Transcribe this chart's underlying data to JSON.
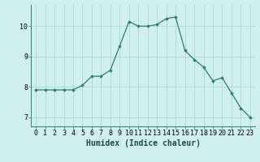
{
  "x": [
    0,
    1,
    2,
    3,
    4,
    5,
    6,
    7,
    8,
    9,
    10,
    11,
    12,
    13,
    14,
    15,
    16,
    17,
    18,
    19,
    20,
    21,
    22,
    23
  ],
  "y": [
    7.9,
    7.9,
    7.9,
    7.9,
    7.9,
    8.05,
    8.35,
    8.35,
    8.55,
    9.35,
    10.15,
    10.0,
    10.0,
    10.05,
    10.25,
    10.3,
    9.2,
    8.9,
    8.65,
    8.2,
    8.3,
    7.8,
    7.3,
    7.0
  ],
  "line_color": "#2d7d6e",
  "marker": "D",
  "marker_size": 1.8,
  "bg_color": "#cff0ec",
  "grid_color": "#aad8d3",
  "xlabel": "Humidex (Indice chaleur)",
  "xlim": [
    -0.5,
    23.5
  ],
  "ylim": [
    6.7,
    10.7
  ],
  "yticks": [
    7,
    8,
    9,
    10
  ],
  "xlabel_fontsize": 7.0,
  "tick_fontsize": 6.0
}
